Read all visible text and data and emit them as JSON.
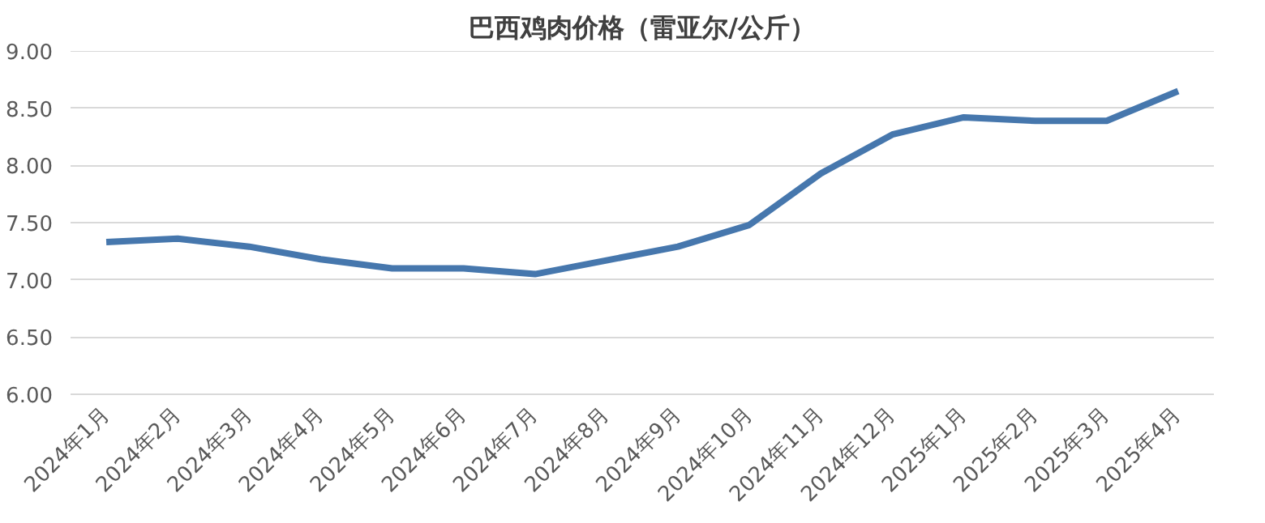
{
  "chart_data": {
    "type": "line",
    "title": "巴西鸡肉价格（雷亚尔/公斤）",
    "categories": [
      "2024年1月",
      "2024年2月",
      "2024年3月",
      "2024年4月",
      "2024年5月",
      "2024年6月",
      "2024年7月",
      "2024年8月",
      "2024年9月",
      "2024年10月",
      "2024年11月",
      "2024年12月",
      "2025年1月",
      "2025年2月",
      "2025年3月",
      "2025年4月"
    ],
    "series": [
      {
        "color": "#4677ad",
        "values": [
          7.33,
          7.36,
          7.29,
          7.18,
          7.1,
          7.1,
          7.05,
          7.17,
          7.29,
          7.48,
          7.93,
          8.27,
          8.42,
          8.39,
          8.39,
          8.65
        ]
      }
    ],
    "ylim": [
      6,
      9
    ],
    "yticks": [
      {
        "value": 6,
        "label": "6.00"
      },
      {
        "value": 6.5,
        "label": "6.50"
      },
      {
        "value": 7,
        "label": "7.00"
      },
      {
        "value": 7.5,
        "label": "7.50"
      },
      {
        "value": 8,
        "label": "8.00"
      },
      {
        "value": 8.5,
        "label": "8.50"
      },
      {
        "value": 9,
        "label": "9.00"
      }
    ],
    "grid": "y",
    "marker": "none",
    "line_style": "solid"
  }
}
